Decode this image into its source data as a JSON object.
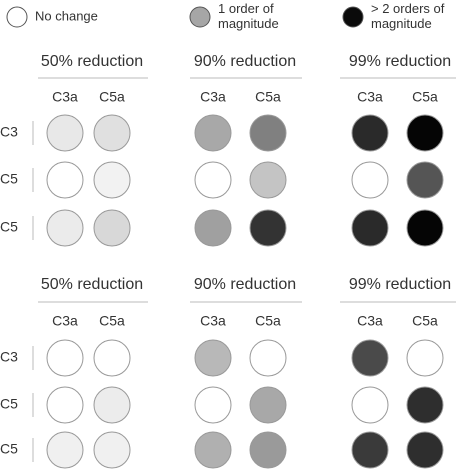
{
  "legend": [
    {
      "lines": [
        "No change"
      ],
      "color": "#ffffff"
    },
    {
      "lines": [
        "1 order of",
        "magnitude"
      ],
      "color": "#a6a6a6"
    },
    {
      "lines": [
        "> 2 orders of",
        "magnitude"
      ],
      "color": "#0a0a0a"
    }
  ],
  "panels": [
    {
      "title": "50% reduction",
      "columns": [
        "C3a",
        "C5a"
      ],
      "rows": [
        {
          "label": "C3",
          "colors": [
            "#e8e8e8",
            "#e0e0e0"
          ]
        },
        {
          "label": "C5",
          "colors": [
            "#ffffff",
            "#f2f2f2"
          ]
        },
        {
          "label": "C5",
          "colors": [
            "#ebebeb",
            "#d8d8d8"
          ]
        }
      ]
    },
    {
      "title": "90% reduction",
      "columns": [
        "C3a",
        "C5a"
      ],
      "rows": [
        {
          "label": "C3",
          "colors": [
            "#a8a8a8",
            "#808080"
          ]
        },
        {
          "label": "C5",
          "colors": [
            "#ffffff",
            "#c4c4c4"
          ]
        },
        {
          "label": "C5",
          "colors": [
            "#a0a0a0",
            "#333333"
          ]
        }
      ]
    },
    {
      "title": "99% reduction",
      "columns": [
        "C3a",
        "C5a"
      ],
      "rows": [
        {
          "label": "C3",
          "colors": [
            "#2a2a2a",
            "#050505"
          ]
        },
        {
          "label": "C5",
          "colors": [
            "#ffffff",
            "#555555"
          ]
        },
        {
          "label": "C5",
          "colors": [
            "#2a2a2a",
            "#050505"
          ]
        }
      ]
    },
    {
      "title": "50% reduction",
      "columns": [
        "C3a",
        "C5a"
      ],
      "rows": [
        {
          "label": "C3",
          "colors": [
            "#ffffff",
            "#ffffff"
          ]
        },
        {
          "label": "C5",
          "colors": [
            "#ffffff",
            "#ececec"
          ]
        },
        {
          "label": "C5",
          "colors": [
            "#f0f0f0",
            "#f0f0f0"
          ]
        }
      ]
    },
    {
      "title": "90% reduction",
      "columns": [
        "C3a",
        "C5a"
      ],
      "rows": [
        {
          "label": "C3",
          "colors": [
            "#b8b8b8",
            "#ffffff"
          ]
        },
        {
          "label": "C5",
          "colors": [
            "#ffffff",
            "#a8a8a8"
          ]
        },
        {
          "label": "C5",
          "colors": [
            "#b0b0b0",
            "#9a9a9a"
          ]
        }
      ]
    },
    {
      "title": "99% reduction",
      "columns": [
        "C3a",
        "C5a"
      ],
      "rows": [
        {
          "label": "C3",
          "colors": [
            "#4a4a4a",
            "#ffffff"
          ]
        },
        {
          "label": "C5",
          "colors": [
            "#ffffff",
            "#2e2e2e"
          ]
        },
        {
          "label": "C5",
          "colors": [
            "#3a3a3a",
            "#2e2e2e"
          ]
        }
      ]
    }
  ]
}
